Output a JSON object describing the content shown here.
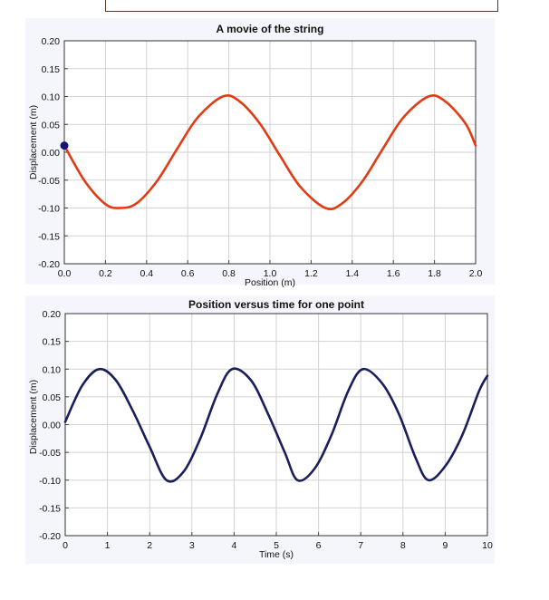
{
  "chart_data": [
    {
      "type": "line",
      "title": "A movie of the string",
      "xlabel": "Position (m)",
      "ylabel": "Displacement (m)",
      "xlim": [
        0.0,
        2.0
      ],
      "ylim": [
        -0.2,
        0.2
      ],
      "x_ticks": [
        "0.0",
        "0.2",
        "0.4",
        "0.6",
        "0.8",
        "1.0",
        "1.2",
        "1.4",
        "1.6",
        "1.8",
        "2.0"
      ],
      "y_ticks": [
        "0.20",
        "0.15",
        "0.10",
        "0.05",
        "0.00",
        "-0.05",
        "-0.10",
        "-0.15",
        "-0.20"
      ],
      "grid": true,
      "line_color": "#e23b14",
      "x": [
        0.0,
        0.1,
        0.2,
        0.27,
        0.35,
        0.45,
        0.55,
        0.65,
        0.77,
        0.85,
        0.95,
        1.05,
        1.15,
        1.27,
        1.35,
        1.45,
        1.55,
        1.65,
        1.77,
        1.85,
        1.95,
        2.0
      ],
      "series": [
        {
          "values": [
            0.012,
            -0.052,
            -0.093,
            -0.1,
            -0.092,
            -0.052,
            0.007,
            0.063,
            0.1,
            0.092,
            0.052,
            -0.007,
            -0.063,
            -0.1,
            -0.092,
            -0.052,
            0.007,
            0.063,
            0.1,
            0.092,
            0.052,
            0.012
          ]
        }
      ],
      "marker": {
        "x": 0.0,
        "y": 0.012,
        "color": "#14147a"
      }
    },
    {
      "type": "line",
      "title": "Position versus time for one point",
      "xlabel": "Time (s)",
      "ylabel": "Displacement (m)",
      "xlim": [
        0,
        10
      ],
      "ylim": [
        -0.2,
        0.2
      ],
      "x_ticks": [
        "0",
        "1",
        "2",
        "3",
        "4",
        "5",
        "6",
        "7",
        "8",
        "9",
        "10"
      ],
      "y_ticks": [
        "0.20",
        "0.15",
        "0.10",
        "0.05",
        "0.00",
        "-0.05",
        "-0.10",
        "-0.15",
        "-0.20"
      ],
      "grid": true,
      "line_color": "#1a1f5c",
      "x": [
        0.0,
        0.4,
        0.8,
        1.2,
        1.6,
        2.0,
        2.4,
        2.8,
        3.2,
        3.6,
        3.95,
        4.4,
        4.8,
        5.2,
        5.5,
        5.9,
        6.3,
        6.7,
        7.05,
        7.5,
        7.9,
        8.3,
        8.6,
        9.0,
        9.4,
        9.8,
        10.0
      ],
      "series": [
        {
          "values": [
            0.005,
            0.07,
            0.1,
            0.08,
            0.025,
            -0.04,
            -0.1,
            -0.085,
            -0.025,
            0.055,
            0.1,
            0.08,
            0.02,
            -0.05,
            -0.1,
            -0.08,
            -0.02,
            0.06,
            0.1,
            0.075,
            0.02,
            -0.06,
            -0.1,
            -0.075,
            -0.02,
            0.06,
            0.088
          ]
        }
      ]
    }
  ]
}
